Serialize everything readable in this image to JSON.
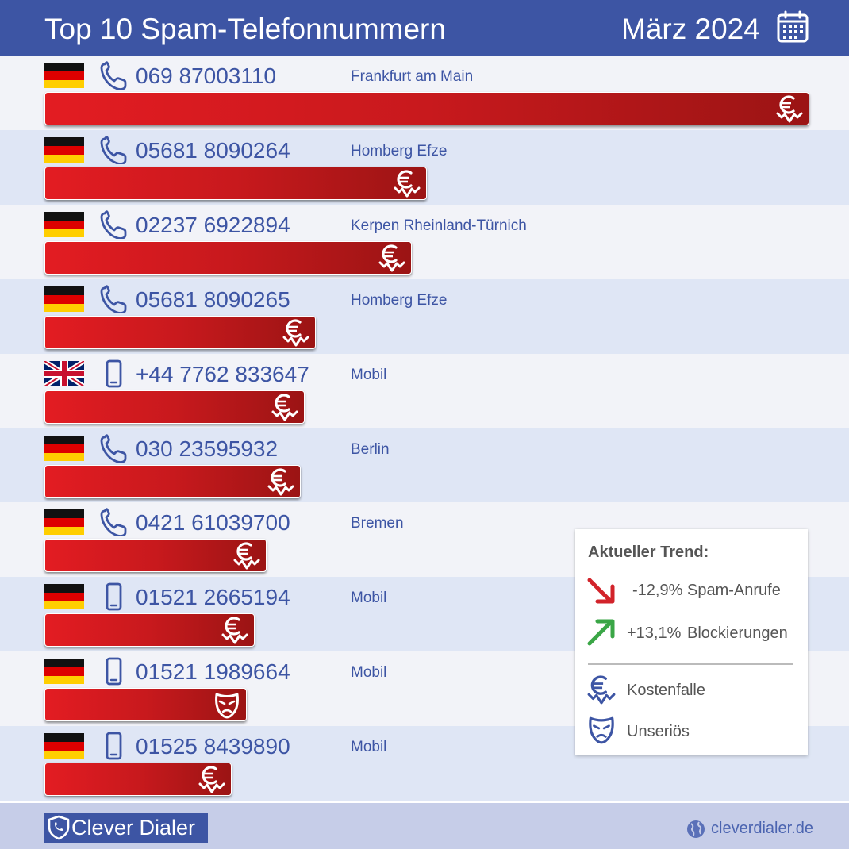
{
  "header": {
    "title": "Top 10 Spam-Telefonnummern",
    "date": "März 2024"
  },
  "colors": {
    "header_bg": "#3d55a4",
    "text": "#3d55a4",
    "bar_start": "#e31c22",
    "bar_end": "#9b1414",
    "row_odd": "#f2f3f8",
    "row_even": "#dfe6f5",
    "trend_down": "#d2232a",
    "trend_up": "#3aa646"
  },
  "chart_data": {
    "type": "bar",
    "orientation": "horizontal",
    "title": "Top 10 Spam-Telefonnummern",
    "xlabel": "",
    "ylabel": "",
    "categories": [
      "069 87003110",
      "05681 8090264",
      "02237 6922894",
      "05681 8090265",
      "+44 7762 833647",
      "030 23595932",
      "0421 61039700",
      "01521 2665194",
      "01521 1989664",
      "01525 8439890"
    ],
    "values": [
      100,
      50,
      48,
      35.5,
      34,
      33.5,
      29,
      27.5,
      26.5,
      24.5
    ],
    "rows": [
      {
        "flag": "germany-flag",
        "phone_type": "landline-phone-icon",
        "number": "069 87003110",
        "location": "Frankfurt am Main",
        "value": 100,
        "category": "euro-icon"
      },
      {
        "flag": "germany-flag",
        "phone_type": "landline-phone-icon",
        "number": "05681 8090264",
        "location": "Homberg Efze",
        "value": 50,
        "category": "euro-icon"
      },
      {
        "flag": "germany-flag",
        "phone_type": "landline-phone-icon",
        "number": "02237 6922894",
        "location": "Kerpen Rheinland-Türnich",
        "value": 48,
        "category": "euro-icon"
      },
      {
        "flag": "germany-flag",
        "phone_type": "landline-phone-icon",
        "number": "05681 8090265",
        "location": "Homberg Efze",
        "value": 35.5,
        "category": "euro-icon"
      },
      {
        "flag": "uk-flag",
        "phone_type": "mobile-phone-icon",
        "number": "+44 7762 833647",
        "location": "Mobil",
        "value": 34,
        "category": "euro-icon"
      },
      {
        "flag": "germany-flag",
        "phone_type": "landline-phone-icon",
        "number": "030 23595932",
        "location": "Berlin",
        "value": 33.5,
        "category": "euro-icon"
      },
      {
        "flag": "germany-flag",
        "phone_type": "landline-phone-icon",
        "number": "0421 61039700",
        "location": "Bremen",
        "value": 29,
        "category": "euro-icon"
      },
      {
        "flag": "germany-flag",
        "phone_type": "mobile-phone-icon",
        "number": "01521 2665194",
        "location": "Mobil",
        "value": 27.5,
        "category": "euro-icon"
      },
      {
        "flag": "germany-flag",
        "phone_type": "mobile-phone-icon",
        "number": "01521 1989664",
        "location": "Mobil",
        "value": 26.5,
        "category": "mask-icon"
      },
      {
        "flag": "germany-flag",
        "phone_type": "mobile-phone-icon",
        "number": "01525 8439890",
        "location": "Mobil",
        "value": 24.5,
        "category": "euro-icon"
      }
    ],
    "grid": false,
    "legend_position": "bottom-right"
  },
  "legend": {
    "title": "Aktueller Trend:",
    "trends": [
      {
        "icon": "arrow-down-right-icon",
        "value": "-12,9%",
        "label": "Spam-Anrufe"
      },
      {
        "icon": "arrow-up-right-icon",
        "value": "+13,1%",
        "label": "Blockierungen"
      }
    ],
    "items": [
      {
        "icon": "euro-icon",
        "label": "Kostenfalle"
      },
      {
        "icon": "mask-icon",
        "label": "Unseriös"
      }
    ]
  },
  "footer": {
    "brand": "Clever Dialer",
    "website": "cleverdialer.de"
  }
}
